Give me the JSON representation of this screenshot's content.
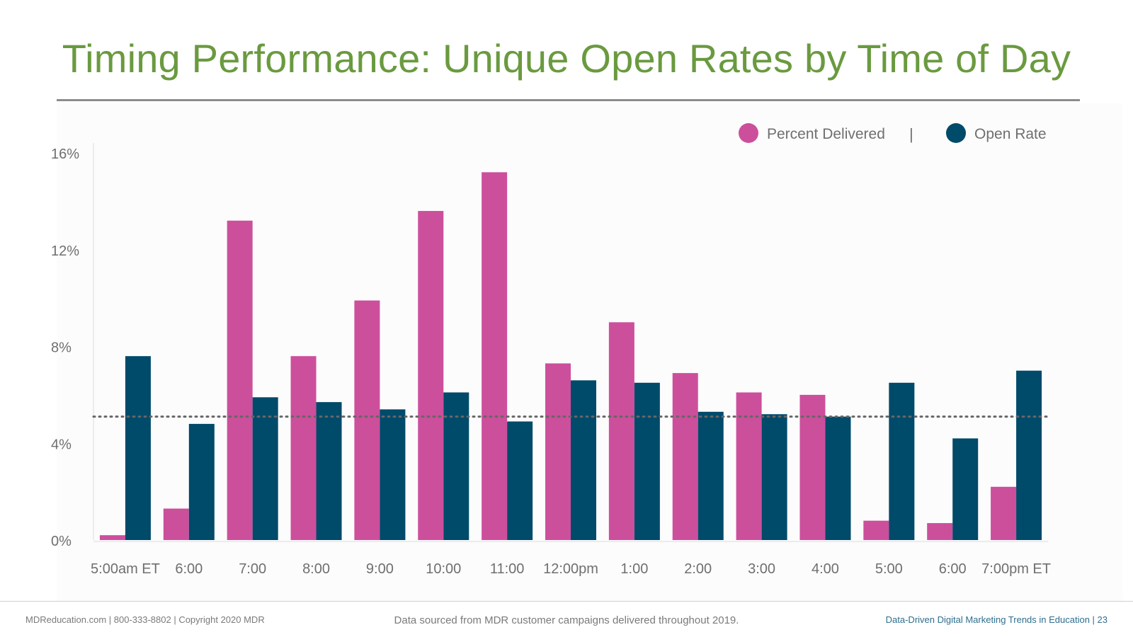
{
  "title": "Timing Performance: Unique Open Rates by Time of Day",
  "colors": {
    "title": "#6a9a3f",
    "percent_delivered": "#cc4f9c",
    "open_rate": "#004a6a",
    "axis_text": "#6f6f6f"
  },
  "footer": {
    "left": "MDReducation.com  |  800-333-8802  |  Copyright 2020 MDR",
    "center": "Data sourced from MDR customer campaigns delivered throughout 2019.",
    "right": "Data-Driven Digital Marketing Trends in Education  |  23"
  },
  "legend": {
    "separator": "|"
  },
  "chart_data": {
    "type": "bar",
    "categories": [
      "5:00am ET",
      "6:00",
      "7:00",
      "8:00",
      "9:00",
      "10:00",
      "11:00",
      "12:00pm",
      "1:00",
      "2:00",
      "3:00",
      "4:00",
      "5:00",
      "6:00",
      "7:00pm ET"
    ],
    "series": [
      {
        "name": "Percent Delivered",
        "color": "#cc4f9c",
        "values": [
          0.2,
          1.3,
          13.2,
          7.6,
          9.9,
          13.6,
          15.2,
          7.3,
          9.0,
          6.9,
          6.1,
          6.0,
          0.8,
          0.7,
          2.2
        ]
      },
      {
        "name": "Open Rate",
        "color": "#004a6a",
        "values": [
          7.6,
          4.8,
          5.9,
          5.7,
          5.4,
          6.1,
          4.9,
          6.6,
          6.5,
          5.3,
          5.2,
          5.1,
          6.5,
          4.2,
          7.0
        ]
      }
    ],
    "y_ticks": [
      "0%",
      "4%",
      "8%",
      "12%",
      "16%"
    ],
    "ylim": [
      0,
      16
    ],
    "reference_line": {
      "value": 5.1,
      "style": "dotted"
    },
    "legend_position": "top-right",
    "grid": false
  }
}
